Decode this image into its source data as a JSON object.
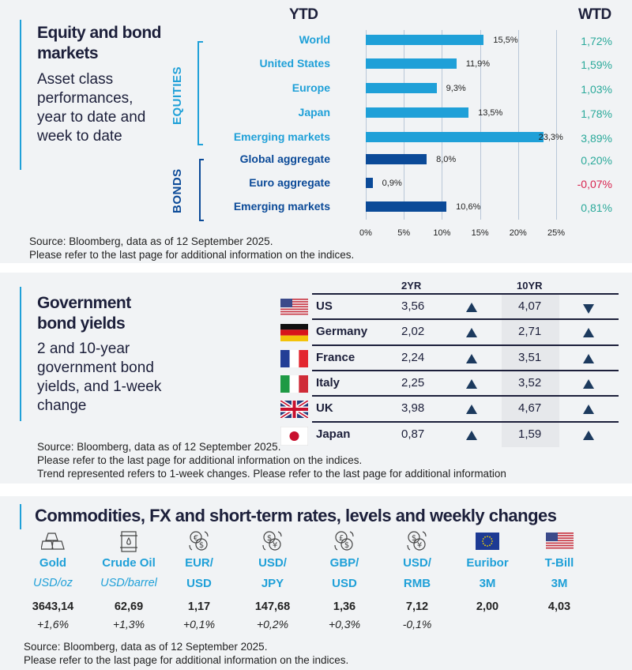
{
  "equity": {
    "title": "Equity and bond markets",
    "subtitle": "Asset class performances, year to date and week to date",
    "ytd_header": "YTD",
    "wtd_header": "WTD",
    "group_equities": "EQUITIES",
    "group_bonds": "BONDS",
    "source": "Source: Bloomberg, data as of 12 September 2025.",
    "note": "Please refer to the last page for additional information on the indices."
  },
  "chart_data": {
    "type": "bar",
    "orientation": "horizontal",
    "categories": [
      "World",
      "United States",
      "Europe",
      "Japan",
      "Emerging  markets",
      "Global  aggregate",
      "Euro  aggregate",
      "Emerging  markets"
    ],
    "groups": [
      "EQUITIES",
      "EQUITIES",
      "EQUITIES",
      "EQUITIES",
      "EQUITIES",
      "BONDS",
      "BONDS",
      "BONDS"
    ],
    "values": [
      15.5,
      11.9,
      9.3,
      13.5,
      23.3,
      8.0,
      0.9,
      10.6
    ],
    "data_labels": [
      "15,5%",
      "11,9%",
      "9,3%",
      "13,5%",
      "23,3%",
      "8,0%",
      "0,9%",
      "10,6%"
    ],
    "wtd": [
      "1,72%",
      "1,59%",
      "1,03%",
      "1,78%",
      "3,89%",
      "0,20%",
      "-0,07%",
      "0,81%"
    ],
    "xlim": [
      0,
      25
    ],
    "x_ticks": [
      "0%",
      "5%",
      "10%",
      "15%",
      "20%",
      "25%"
    ],
    "grid": true,
    "colors": {
      "equities": "#1fa0d8",
      "bonds": "#0b4a98",
      "wtd_positive": "#2aa99a",
      "wtd_negative": "#d8234e"
    }
  },
  "yields": {
    "title": "Government bond yields",
    "subtitle": "2 and 10-year government bond yields, and 1-week change",
    "col_2yr": "2YR",
    "col_10yr": "10YR",
    "rows": [
      {
        "country": "US",
        "flag": "us-flag",
        "y2": "3,56",
        "t2": "up",
        "y10": "4,07",
        "t10": "down"
      },
      {
        "country": "Germany",
        "flag": "germany-flag",
        "y2": "2,02",
        "t2": "up",
        "y10": "2,71",
        "t10": "up"
      },
      {
        "country": "France",
        "flag": "france-flag",
        "y2": "2,24",
        "t2": "up",
        "y10": "3,51",
        "t10": "up"
      },
      {
        "country": "Italy",
        "flag": "italy-flag",
        "y2": "2,25",
        "t2": "up",
        "y10": "3,52",
        "t10": "up"
      },
      {
        "country": "UK",
        "flag": "uk-flag",
        "y2": "3,98",
        "t2": "up",
        "y10": "4,67",
        "t10": "up"
      },
      {
        "country": "Japan",
        "flag": "japan-flag",
        "y2": "0,87",
        "t2": "up",
        "y10": "1,59",
        "t10": "up"
      }
    ],
    "source": "Source: Bloomberg, data as of 12 September 2025.",
    "note": "Please refer to the last page for additional information on the indices.",
    "note2": "Trend represented refers to 1-week changes. Please refer to the last page for additional information"
  },
  "commod": {
    "title": "Commodities, FX and short-term rates, levels and weekly changes",
    "items": [
      {
        "icon": "gold-bars-icon",
        "label": "Gold",
        "sub": "USD/oz",
        "value": "3643,14",
        "change": "+1,6%"
      },
      {
        "icon": "oil-barrel-icon",
        "label": "Crude Oil",
        "sub": "USD/barrel",
        "value": "62,69",
        "change": "+1,3%"
      },
      {
        "icon": "euro-dollar-exchange-icon",
        "label": "EUR/",
        "sub": "USD",
        "value": "1,17",
        "change": "+0,1%"
      },
      {
        "icon": "dollar-yen-exchange-icon",
        "label": "USD/",
        "sub": "JPY",
        "value": "147,68",
        "change": "+0,2%"
      },
      {
        "icon": "pound-dollar-exchange-icon",
        "label": "GBP/",
        "sub": "USD",
        "value": "1,36",
        "change": "+0,3%"
      },
      {
        "icon": "dollar-yuan-exchange-icon",
        "label": "USD/",
        "sub": "RMB",
        "value": "7,12",
        "change": "-0,1%"
      },
      {
        "icon": "eu-flag-icon",
        "label": "Euribor",
        "sub": "3M",
        "value": "2,00",
        "change": ""
      },
      {
        "icon": "us-flag-icon",
        "label": "T-Bill",
        "sub": "3M",
        "value": "4,03",
        "change": ""
      }
    ],
    "source": "Source: Bloomberg, data as of 12 September 2025.",
    "note": "Please refer to the last page for additional information on the indices."
  }
}
